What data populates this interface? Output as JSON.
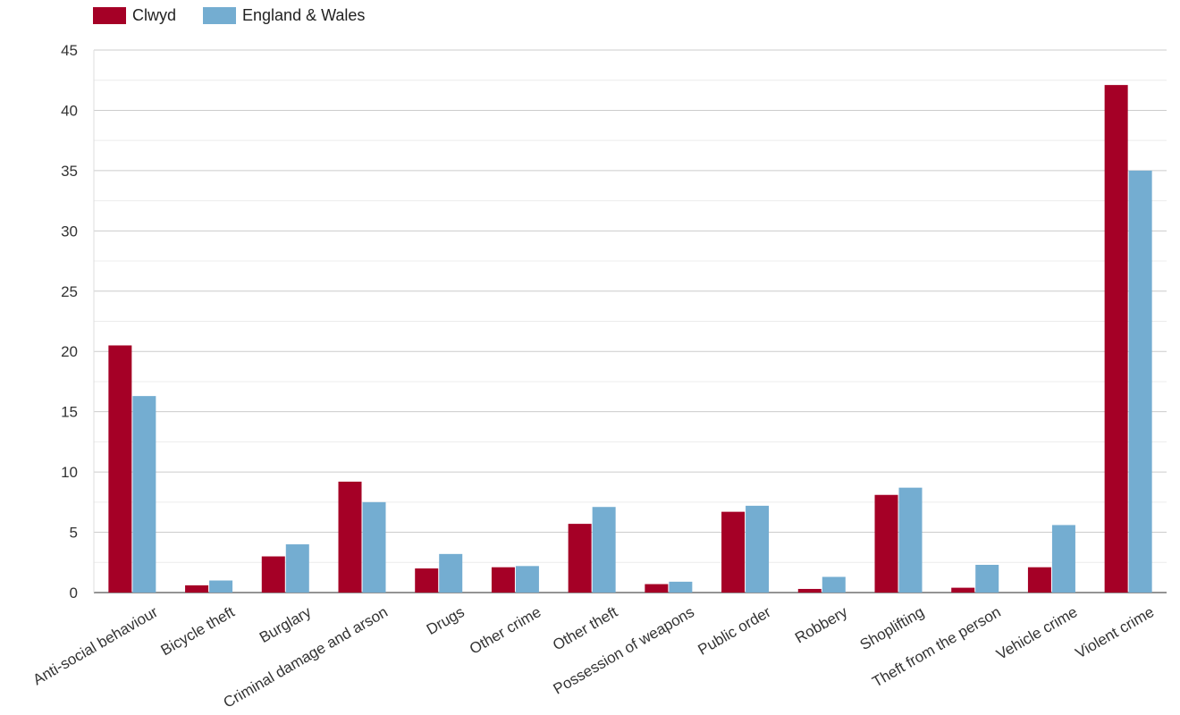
{
  "chart_data": {
    "type": "bar",
    "categories": [
      "Anti-social behaviour",
      "Bicycle theft",
      "Burglary",
      "Criminal damage and arson",
      "Drugs",
      "Other crime",
      "Other theft",
      "Possession of weapons",
      "Public order",
      "Robbery",
      "Shoplifting",
      "Theft from the person",
      "Vehicle crime",
      "Violent crime"
    ],
    "series": [
      {
        "name": "Clwyd",
        "color": "#a50026",
        "values": [
          20.5,
          0.6,
          3.0,
          9.2,
          2.0,
          2.1,
          5.7,
          0.7,
          6.7,
          0.3,
          8.1,
          0.4,
          2.1,
          42.1
        ]
      },
      {
        "name": "England & Wales",
        "color": "#74add1",
        "values": [
          16.3,
          1.0,
          4.0,
          7.5,
          3.2,
          2.2,
          7.1,
          0.9,
          7.2,
          1.3,
          8.7,
          2.3,
          5.6,
          35.0
        ]
      }
    ],
    "yticks": [
      "0",
      "5",
      "10",
      "15",
      "20",
      "25",
      "30",
      "35",
      "40",
      "45"
    ],
    "ylim": [
      0,
      45
    ],
    "grid": true,
    "legend_position": "top-left"
  }
}
